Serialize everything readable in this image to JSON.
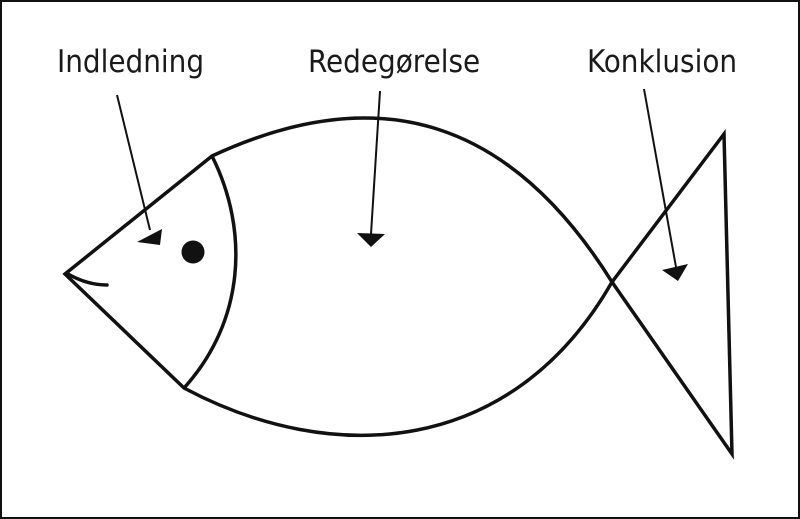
{
  "colors": {
    "line": "#111111",
    "background": "#ffffff"
  },
  "labels": {
    "intro": "Indledning",
    "body": "Redegørelse",
    "conclusion": "Konklusion"
  }
}
